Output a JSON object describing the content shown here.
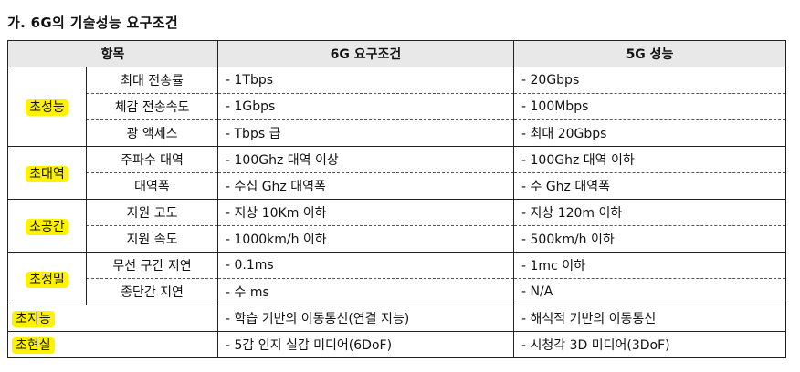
{
  "heading": "가. 6G의 기술성능 요구조건",
  "header": {
    "col_item": "항목",
    "col_6g": "6G 요구조건",
    "col_5g": "5G 성능"
  },
  "groups": [
    {
      "category": "초성능",
      "rows": [
        {
          "item": "최대 전송률",
          "req6g": "- 1Tbps",
          "perf5g": "- 20Gbps"
        },
        {
          "item": "체감 전송속도",
          "req6g": "- 1Gbps",
          "perf5g": "- 100Mbps"
        },
        {
          "item": "광 액세스",
          "req6g": "- Tbps 급",
          "perf5g": "- 최대 20Gbps"
        }
      ]
    },
    {
      "category": "초대역",
      "rows": [
        {
          "item": "주파수 대역",
          "req6g": "- 100Ghz 대역 이상",
          "perf5g": "- 100Ghz 대역 이하"
        },
        {
          "item": "대역폭",
          "req6g": "- 수십 Ghz 대역폭",
          "perf5g": "- 수 Ghz 대역폭"
        }
      ]
    },
    {
      "category": "초공간",
      "rows": [
        {
          "item": "지원 고도",
          "req6g": "- 지상 10Km 이하",
          "perf5g": "- 지상 120m 이하"
        },
        {
          "item": "지원 속도",
          "req6g": "- 1000km/h 이하",
          "perf5g": "- 500km/h 이하"
        }
      ]
    },
    {
      "category": "초정밀",
      "rows": [
        {
          "item": "무선 구간 지연",
          "req6g": "- 0.1ms",
          "perf5g": "- 1mc 이하"
        },
        {
          "item": "종단간 지연",
          "req6g": "- 수 ms",
          "perf5g": "- N/A"
        }
      ]
    }
  ],
  "single_rows": [
    {
      "category": "초지능",
      "req6g": "- 학습 기반의 이동통신(연결 지능)",
      "perf5g": "- 해석적 기반의 이동통신"
    },
    {
      "category": "초현실",
      "req6g": "- 5감 인지 실감 미디어(6DoF)",
      "perf5g": "- 시청각 3D 미디어(3DoF)"
    }
  ],
  "highlight_color": "#fff200"
}
